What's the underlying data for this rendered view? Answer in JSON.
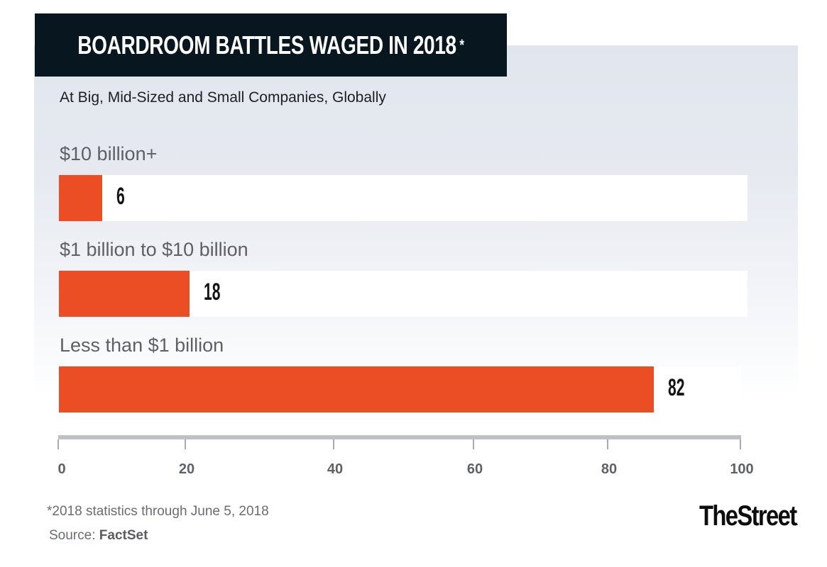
{
  "chart_data": {
    "type": "bar",
    "orientation": "horizontal",
    "title": "BOARDROOM BATTLES WAGED IN 2018",
    "title_marker": "*",
    "subtitle": "At Big, Mid-Sized and Small Companies, Globally",
    "categories": [
      "$10 billion+",
      "$1 billion to $10 billion",
      "Less than $1 billion"
    ],
    "values": [
      6,
      18,
      82
    ],
    "xlabel": "",
    "ylabel": "",
    "xlim": [
      0,
      100
    ],
    "x_ticks": [
      0,
      20,
      40,
      60,
      80,
      100
    ],
    "grid": false,
    "legend": "none",
    "colors": {
      "bar": "#eb4d24",
      "track": "#ffffff",
      "title_bg": "#08171f"
    }
  },
  "footer": {
    "footnote": "*2018 statistics through June 5, 2018",
    "source_label": "Source: ",
    "source_name": "FactSet",
    "logo": "TheStreet",
    "logo_dot": "."
  }
}
